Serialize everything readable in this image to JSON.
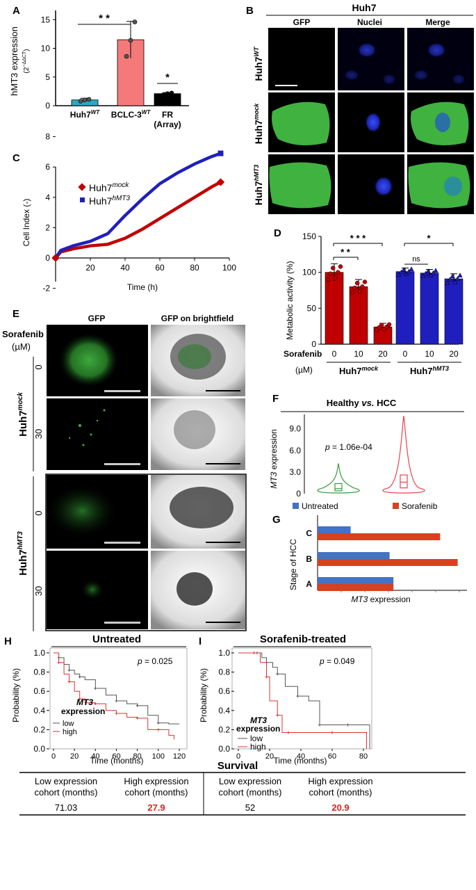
{
  "colors": {
    "huh7_bar": "#2aa8c4",
    "bclc_bar": "#f47a7a",
    "fr_bar": "#000000",
    "mock_red": "#c00000",
    "hmt3_blue": "#1f1fbf",
    "healthy_green": "#3a9a3a",
    "hcc_red": "#e8424a",
    "untreated_blue": "#4472c4",
    "sorafenib_red": "#d9401f",
    "gfp_green": "#3fb23f",
    "nuclei_blue": "#2233cc",
    "km_low": "#555555",
    "km_high": "#e03030"
  },
  "panel_labels": [
    "A",
    "B",
    "C",
    "D",
    "E",
    "F",
    "G",
    "H",
    "I"
  ],
  "panelA": {
    "ylabel": "hMT3 expression",
    "ylabel2": "(2",
    "ylabel2_exp": "−ΔΔCT",
    "ylabel2_end": ")",
    "sig1": "* *",
    "sig2": "*",
    "cats": [
      {
        "main": "Huh7",
        "sup": "WT",
        "line2": ""
      },
      {
        "main": "BCLC-3",
        "sup": "WT",
        "line2": ""
      },
      {
        "main": "FR",
        "sup": "",
        "line2": "(Array)"
      }
    ],
    "yticks": [
      "0",
      "5",
      "10",
      "15"
    ]
  },
  "panelB": {
    "title": "Huh7",
    "cols": [
      "GFP",
      "Nuclei",
      "Merge"
    ],
    "rows": [
      {
        "main": "Huh7",
        "sup": "WT"
      },
      {
        "main": "Huh7",
        "sup": "mock"
      },
      {
        "main": "Huh7",
        "sup": "hMT3"
      }
    ]
  },
  "panelC": {
    "xlabel": "Time (h)",
    "ylabel": "Cell Index (-)",
    "legend": [
      {
        "main": "Huh7",
        "sup": "mock"
      },
      {
        "main": "Huh7",
        "sup": "hMT3"
      }
    ],
    "xticks": [
      "20",
      "40",
      "60",
      "80",
      "100"
    ],
    "yticks": [
      "-2",
      "0",
      "2",
      "4",
      "6",
      "8"
    ]
  },
  "panelD": {
    "ylabel": "Metabolic activity (%)",
    "sorafenib": "Sorafenib",
    "unit": "(µM)",
    "doses": [
      "0",
      "10",
      "20",
      "0",
      "10",
      "20"
    ],
    "groups": [
      {
        "main": "Huh7",
        "sup": "mock"
      },
      {
        "main": "Huh7",
        "sup": "hMT3"
      }
    ],
    "sig": [
      "* * *",
      "* *",
      "ns",
      "*"
    ],
    "yticks": [
      "0",
      "50",
      "100",
      "150"
    ]
  },
  "panelE": {
    "col1": "GFP",
    "col2": "GFP on brightfield",
    "sorafenib": "Sorafenib",
    "unit": "(µM)",
    "doses": [
      "0",
      "30",
      "0",
      "30"
    ],
    "groups": [
      {
        "main": "Huh7",
        "sup": "mock"
      },
      {
        "main": "Huh7",
        "sup": "hMT3"
      }
    ]
  },
  "panelF": {
    "title_a": "Healthy",
    "title_vs": "vs.",
    "title_b": "HCC",
    "ylabel_it": "MT3",
    "ylabel": "expression",
    "p_it": "p",
    "p_text": "= 1.06e-04",
    "yticks": [
      "0",
      "3.0",
      "6.0",
      "9.0"
    ]
  },
  "panelG": {
    "legend": [
      "Untreated",
      "Sorafenib"
    ],
    "ylabel": "Stage of HCC",
    "xlabel_it": "MT3",
    "xlabel": "expression",
    "stages": [
      "C",
      "B",
      "A"
    ]
  },
  "chart_data": [
    {
      "panel": "A",
      "type": "bar",
      "title": "",
      "ylabel": "hMT3 expression (2^-ΔΔCT)",
      "ylim": [
        0,
        16
      ],
      "categories": [
        "Huh7WT",
        "BCLC-3WT",
        "FR (Array)"
      ],
      "values": [
        1.0,
        11.5,
        2.1
      ],
      "errors": [
        0.3,
        3.2,
        0.2
      ],
      "points": [
        [
          0.8,
          1.0,
          1.1
        ],
        [
          8.6,
          11.4,
          14.6
        ],
        [
          1.9,
          2.1,
          2.2
        ]
      ]
    },
    {
      "panel": "C",
      "type": "line",
      "xlabel": "Time (h)",
      "ylabel": "Cell Index (-)",
      "xlim": [
        0,
        100
      ],
      "ylim": [
        -2,
        8
      ],
      "series": [
        {
          "name": "Huh7mock",
          "x": [
            0,
            3,
            10,
            20,
            30,
            40,
            50,
            60,
            70,
            80,
            90,
            95
          ],
          "y": [
            0,
            0.4,
            0.6,
            0.8,
            0.9,
            1.3,
            1.9,
            2.6,
            3.3,
            4.0,
            4.7,
            5.0
          ]
        },
        {
          "name": "Huh7hMT3",
          "x": [
            0,
            3,
            10,
            20,
            30,
            40,
            50,
            60,
            70,
            80,
            90,
            95
          ],
          "y": [
            0,
            0.5,
            0.8,
            1.1,
            1.6,
            2.8,
            3.9,
            4.9,
            5.6,
            6.2,
            6.7,
            6.9
          ]
        }
      ]
    },
    {
      "panel": "D",
      "type": "bar",
      "ylabel": "Metabolic activity (%)",
      "ylim": [
        0,
        150
      ],
      "categories": [
        "mock 0",
        "mock 10",
        "mock 20",
        "hMT3 0",
        "hMT3 10",
        "hMT3 20"
      ],
      "values": [
        100,
        80,
        24,
        101,
        99,
        91
      ],
      "errors": [
        12,
        10,
        5,
        5,
        5,
        7
      ]
    },
    {
      "panel": "F",
      "type": "violin",
      "title": "Healthy vs. HCC",
      "ylabel": "MT3 expression",
      "ylim": [
        0,
        11
      ],
      "categories": [
        "Healthy",
        "HCC"
      ],
      "q1": [
        0.4,
        0.8
      ],
      "median": [
        0.7,
        1.6
      ],
      "q3": [
        1.4,
        2.6
      ],
      "max": [
        4.2,
        10.8
      ]
    },
    {
      "panel": "G",
      "type": "bar",
      "orientation": "horizontal",
      "ylabel": "Stage of HCC",
      "xlabel": "MT3 expression",
      "categories": [
        "C",
        "B",
        "A"
      ],
      "series": [
        {
          "name": "Untreated",
          "values": [
            0.85,
            1.85,
            1.95
          ]
        },
        {
          "name": "Sorafenib",
          "values": [
            3.15,
            3.6,
            1.95
          ]
        }
      ]
    },
    {
      "panel": "H",
      "type": "line",
      "title": "Untreated",
      "xlabel": "Time (months)",
      "ylabel": "Probability (%)",
      "xlim": [
        0,
        120
      ],
      "ylim": [
        0,
        1.0
      ],
      "annotation": "p = 0.025",
      "series": [
        {
          "name": "low",
          "x": [
            0,
            5,
            10,
            15,
            20,
            25,
            30,
            40,
            50,
            60,
            70,
            80,
            90,
            100,
            110,
            120
          ],
          "y": [
            1.0,
            0.95,
            0.88,
            0.82,
            0.78,
            0.75,
            0.72,
            0.63,
            0.56,
            0.5,
            0.47,
            0.45,
            0.35,
            0.27,
            0.26,
            0.26
          ]
        },
        {
          "name": "high",
          "x": [
            0,
            5,
            10,
            15,
            20,
            25,
            30,
            40,
            50,
            60,
            70,
            80,
            90,
            100,
            110,
            115
          ],
          "y": [
            1.0,
            0.9,
            0.78,
            0.7,
            0.6,
            0.52,
            0.48,
            0.47,
            0.4,
            0.37,
            0.33,
            0.32,
            0.2,
            0.2,
            0.14,
            0.1
          ]
        }
      ]
    },
    {
      "panel": "I",
      "type": "line",
      "title": "Sorafenib-treated",
      "xlabel": "Time (months)",
      "ylabel": "Probability (%)",
      "xlim": [
        0,
        80
      ],
      "ylim": [
        0,
        1.0
      ],
      "annotation": "p = 0.049",
      "series": [
        {
          "name": "low",
          "x": [
            0,
            12,
            15,
            18,
            22,
            25,
            30,
            38,
            45,
            52,
            60,
            70,
            80,
            84
          ],
          "y": [
            1.0,
            1.0,
            0.95,
            0.9,
            0.85,
            0.78,
            0.65,
            0.55,
            0.5,
            0.25,
            0.25,
            0.25,
            0.25,
            0.0
          ]
        },
        {
          "name": "high",
          "x": [
            0,
            10,
            14,
            18,
            20,
            25,
            28,
            32,
            40,
            60,
            80,
            82
          ],
          "y": [
            1.0,
            1.0,
            0.9,
            0.75,
            0.5,
            0.35,
            0.17,
            0.17,
            0.17,
            0.17,
            0.17,
            0.0
          ]
        }
      ]
    }
  ],
  "panelH": {
    "title": "Untreated",
    "p_it": "p",
    "p_text": "= 0.025",
    "ylabel": "Probability (%)",
    "xlabel": "Time (months)",
    "legend_title_it": "MT3",
    "legend_title": "expression",
    "legend": [
      "low",
      "high"
    ],
    "yticks": [
      "0.0",
      "0.2",
      "0.4",
      "0.6",
      "0.8",
      "1.0"
    ],
    "xticks": [
      "0",
      "20",
      "40",
      "60",
      "80",
      "100",
      "120"
    ]
  },
  "panelI": {
    "title": "Sorafenib-treated",
    "p_it": "p",
    "p_text": "= 0.049",
    "ylabel": "Probability (%)",
    "xlabel": "Time (months)",
    "legend_title_it": "MT3",
    "legend_title": "expression",
    "legend": [
      "low",
      "high"
    ],
    "yticks": [
      "0.0",
      "0.2",
      "0.4",
      "0.6",
      "0.8",
      "1.0"
    ],
    "xticks": [
      "0",
      "20",
      "40",
      "60",
      "80"
    ]
  },
  "survival": {
    "title": "Survival",
    "headers": [
      "Low expression cohort (months)",
      "High expression cohort (months)",
      "Low expression cohort (months)",
      "High expression cohort (months)"
    ],
    "header_lines": [
      [
        "Low expression",
        "cohort (months)"
      ],
      [
        "High expression",
        "cohort (months)"
      ],
      [
        "Low expression",
        "cohort (months)"
      ],
      [
        "High expression",
        "cohort (months)"
      ]
    ],
    "values": [
      "71.03",
      "27.9",
      "52",
      "20.9"
    ]
  }
}
